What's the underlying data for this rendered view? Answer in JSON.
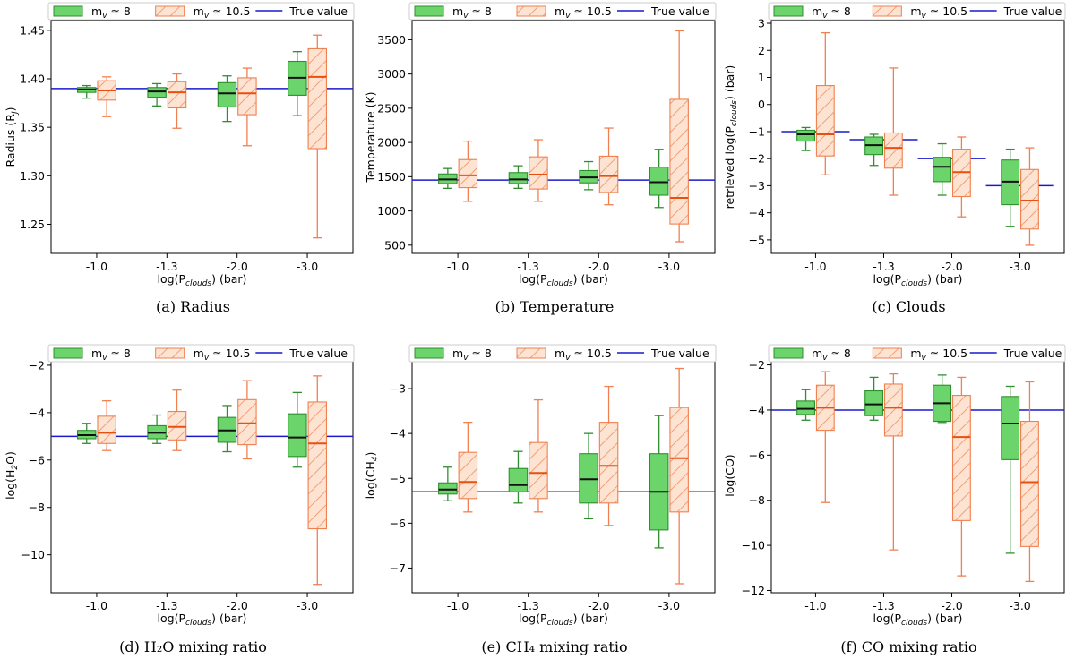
{
  "legend": {
    "series_a": "m",
    "series_a_sub": "v",
    "series_a_rest": " ≃ 8",
    "series_b": "m",
    "series_b_sub": "v",
    "series_b_rest": " ≃ 10.5",
    "true_value": "True value"
  },
  "colors": {
    "green_fill": "#6bd46b",
    "green_line": "#2f8f2f",
    "green_median": "#111111",
    "orange_fill": "#fde3d2",
    "orange_line": "#f08050",
    "orange_median": "#e8500f",
    "true_line": "#1a1acc"
  },
  "chart_data": [
    {
      "type": "box",
      "caption": "(a) Radius",
      "xlabel": "log(P_clouds) (bar)",
      "xlabel_main": "log(P",
      "xlabel_sub": "clouds",
      "xlabel_rest": ") (bar)",
      "ylabel": "Radius (R_J)",
      "ylabel_main": "Radius (R",
      "ylabel_sub": "J",
      "ylabel_rest": ")",
      "categories": [
        "-1.0",
        "-1.3",
        "-2.0",
        "-3.0"
      ],
      "ylim": [
        1.22,
        1.46
      ],
      "yticks": [
        "1.25",
        "1.30",
        "1.35",
        "1.40",
        "1.45"
      ],
      "ytick_values": [
        1.25,
        1.3,
        1.35,
        1.4,
        1.45
      ],
      "true_value": 1.39,
      "series": [
        {
          "name": "m_v ≃ 8",
          "boxes": [
            {
              "whislo": 1.38,
              "q1": 1.386,
              "med": 1.389,
              "q3": 1.391,
              "whishi": 1.393
            },
            {
              "whislo": 1.372,
              "q1": 1.381,
              "med": 1.387,
              "q3": 1.391,
              "whishi": 1.395
            },
            {
              "whislo": 1.356,
              "q1": 1.371,
              "med": 1.385,
              "q3": 1.396,
              "whishi": 1.403
            },
            {
              "whislo": 1.362,
              "q1": 1.383,
              "med": 1.401,
              "q3": 1.418,
              "whishi": 1.428
            }
          ]
        },
        {
          "name": "m_v ≃ 10.5",
          "boxes": [
            {
              "whislo": 1.361,
              "q1": 1.378,
              "med": 1.388,
              "q3": 1.398,
              "whishi": 1.402
            },
            {
              "whislo": 1.349,
              "q1": 1.37,
              "med": 1.386,
              "q3": 1.397,
              "whishi": 1.405
            },
            {
              "whislo": 1.331,
              "q1": 1.363,
              "med": 1.385,
              "q3": 1.401,
              "whishi": 1.411
            },
            {
              "whislo": 1.236,
              "q1": 1.328,
              "med": 1.402,
              "q3": 1.431,
              "whishi": 1.445
            }
          ]
        }
      ]
    },
    {
      "type": "box",
      "caption": "(b) Temperature",
      "xlabel": "log(P_clouds) (bar)",
      "xlabel_main": "log(P",
      "xlabel_sub": "clouds",
      "xlabel_rest": ") (bar)",
      "ylabel": "Temperature (K)",
      "ylabel_main": "Temperature (K)",
      "ylabel_sub": "",
      "ylabel_rest": "",
      "categories": [
        "-1.0",
        "-1.3",
        "-2.0",
        "-3.0"
      ],
      "ylim": [
        380,
        3780
      ],
      "yticks": [
        "500",
        "1000",
        "1500",
        "2000",
        "2500",
        "3000",
        "3500"
      ],
      "ytick_values": [
        500,
        1000,
        1500,
        2000,
        2500,
        3000,
        3500
      ],
      "true_value": 1450,
      "series": [
        {
          "name": "m_v ≃ 8",
          "boxes": [
            {
              "whislo": 1330,
              "q1": 1400,
              "med": 1460,
              "q3": 1540,
              "whishi": 1620
            },
            {
              "whislo": 1330,
              "q1": 1400,
              "med": 1460,
              "q3": 1560,
              "whishi": 1660
            },
            {
              "whislo": 1310,
              "q1": 1410,
              "med": 1490,
              "q3": 1590,
              "whishi": 1720
            },
            {
              "whislo": 1050,
              "q1": 1230,
              "med": 1420,
              "q3": 1640,
              "whishi": 1900
            }
          ]
        },
        {
          "name": "m_v ≃ 10.5",
          "boxes": [
            {
              "whislo": 1140,
              "q1": 1340,
              "med": 1520,
              "q3": 1750,
              "whishi": 2020
            },
            {
              "whislo": 1140,
              "q1": 1320,
              "med": 1530,
              "q3": 1790,
              "whishi": 2040
            },
            {
              "whislo": 1090,
              "q1": 1270,
              "med": 1510,
              "q3": 1800,
              "whishi": 2210
            },
            {
              "whislo": 550,
              "q1": 810,
              "med": 1190,
              "q3": 2630,
              "whishi": 3630
            }
          ]
        }
      ]
    },
    {
      "type": "box",
      "caption": "(c) Clouds",
      "xlabel": "log(P_clouds) (bar)",
      "xlabel_main": "log(P",
      "xlabel_sub": "clouds",
      "xlabel_rest": ") (bar)",
      "ylabel": "retrieved log(P_clouds) (bar)",
      "ylabel_main": "retrieved log(P",
      "ylabel_sub": "clouds",
      "ylabel_rest": ") (bar)",
      "categories": [
        "-1.0",
        "-1.3",
        "-2.0",
        "-3.0"
      ],
      "ylim": [
        -5.5,
        3.1
      ],
      "yticks": [
        "−5",
        "−4",
        "−3",
        "−2",
        "−1",
        "0",
        "1",
        "2",
        "3"
      ],
      "ytick_values": [
        -5,
        -4,
        -3,
        -2,
        -1,
        0,
        1,
        2,
        3
      ],
      "true_value_segments": [
        -1.0,
        -1.3,
        -2.0,
        -3.0
      ],
      "series": [
        {
          "name": "m_v ≃ 8",
          "boxes": [
            {
              "whislo": -1.7,
              "q1": -1.35,
              "med": -1.1,
              "q3": -0.95,
              "whishi": -0.85
            },
            {
              "whislo": -2.25,
              "q1": -1.85,
              "med": -1.5,
              "q3": -1.2,
              "whishi": -1.1
            },
            {
              "whislo": -3.35,
              "q1": -2.85,
              "med": -2.3,
              "q3": -1.95,
              "whishi": -1.45
            },
            {
              "whislo": -4.5,
              "q1": -3.7,
              "med": -2.85,
              "q3": -2.05,
              "whishi": -1.65
            }
          ]
        },
        {
          "name": "m_v ≃ 10.5",
          "boxes": [
            {
              "whislo": -2.6,
              "q1": -1.9,
              "med": -1.1,
              "q3": 0.7,
              "whishi": 2.65
            },
            {
              "whislo": -3.35,
              "q1": -2.35,
              "med": -1.6,
              "q3": -1.05,
              "whishi": 1.35
            },
            {
              "whislo": -4.15,
              "q1": -3.4,
              "med": -2.5,
              "q3": -1.65,
              "whishi": -1.2
            },
            {
              "whislo": -5.2,
              "q1": -4.6,
              "med": -3.55,
              "q3": -2.4,
              "whishi": -1.6
            }
          ]
        }
      ]
    },
    {
      "type": "box",
      "caption": "(d) H₂O mixing ratio",
      "xlabel": "log(P_clouds) (bar)",
      "xlabel_main": "log(P",
      "xlabel_sub": "clouds",
      "xlabel_rest": ") (bar)",
      "ylabel": "log(H2O)",
      "ylabel_main": "log(H",
      "ylabel_sub": "2",
      "ylabel_rest": "O)",
      "categories": [
        "-1.0",
        "-1.3",
        "-2.0",
        "-3.0"
      ],
      "ylim": [
        -11.6,
        -1.7
      ],
      "yticks": [
        "−10",
        "−8",
        "−6",
        "−4",
        "−2"
      ],
      "ytick_values": [
        -10,
        -8,
        -6,
        -4,
        -2
      ],
      "true_value": -5.0,
      "series": [
        {
          "name": "m_v ≃ 8",
          "boxes": [
            {
              "whislo": -5.3,
              "q1": -5.1,
              "med": -4.95,
              "q3": -4.75,
              "whishi": -4.45
            },
            {
              "whislo": -5.3,
              "q1": -5.1,
              "med": -4.85,
              "q3": -4.55,
              "whishi": -4.1
            },
            {
              "whislo": -5.65,
              "q1": -5.25,
              "med": -4.75,
              "q3": -4.2,
              "whishi": -3.7
            },
            {
              "whislo": -6.3,
              "q1": -5.85,
              "med": -5.05,
              "q3": -4.05,
              "whishi": -3.15
            }
          ]
        },
        {
          "name": "m_v ≃ 10.5",
          "boxes": [
            {
              "whislo": -5.6,
              "q1": -5.3,
              "med": -4.85,
              "q3": -4.15,
              "whishi": -3.5
            },
            {
              "whislo": -5.6,
              "q1": -5.15,
              "med": -4.6,
              "q3": -3.95,
              "whishi": -3.05
            },
            {
              "whislo": -5.95,
              "q1": -5.35,
              "med": -4.45,
              "q3": -3.45,
              "whishi": -2.65
            },
            {
              "whislo": -11.25,
              "q1": -8.9,
              "med": -5.3,
              "q3": -3.55,
              "whishi": -2.45
            }
          ]
        }
      ]
    },
    {
      "type": "box",
      "caption": "(e) CH₄ mixing ratio",
      "xlabel": "log(P_clouds) (bar)",
      "xlabel_main": "log(P",
      "xlabel_sub": "clouds",
      "xlabel_rest": ") (bar)",
      "ylabel": "log(CH4)",
      "ylabel_main": "log(CH",
      "ylabel_sub": "4",
      "ylabel_rest": ")",
      "categories": [
        "-1.0",
        "-1.3",
        "-2.0",
        "-3.0"
      ],
      "ylim": [
        -7.55,
        -2.32
      ],
      "yticks": [
        "−7",
        "−6",
        "−5",
        "−4",
        "−3"
      ],
      "ytick_values": [
        -7,
        -6,
        -5,
        -4,
        -3
      ],
      "true_value": -5.3,
      "series": [
        {
          "name": "m_v ≃ 8",
          "boxes": [
            {
              "whislo": -5.5,
              "q1": -5.35,
              "med": -5.25,
              "q3": -5.1,
              "whishi": -4.75
            },
            {
              "whislo": -5.55,
              "q1": -5.3,
              "med": -5.15,
              "q3": -4.78,
              "whishi": -4.4
            },
            {
              "whislo": -5.9,
              "q1": -5.55,
              "med": -5.02,
              "q3": -4.45,
              "whishi": -4.0
            },
            {
              "whislo": -6.55,
              "q1": -6.15,
              "med": -5.3,
              "q3": -4.45,
              "whishi": -3.6
            }
          ]
        },
        {
          "name": "m_v ≃ 10.5",
          "boxes": [
            {
              "whislo": -5.75,
              "q1": -5.45,
              "med": -5.08,
              "q3": -4.42,
              "whishi": -3.75
            },
            {
              "whislo": -5.75,
              "q1": -5.45,
              "med": -4.88,
              "q3": -4.2,
              "whishi": -3.25
            },
            {
              "whislo": -6.05,
              "q1": -5.55,
              "med": -4.72,
              "q3": -3.75,
              "whishi": -2.95
            },
            {
              "whislo": -7.35,
              "q1": -5.75,
              "med": -4.55,
              "q3": -3.42,
              "whishi": -2.55
            }
          ]
        }
      ]
    },
    {
      "type": "box",
      "caption": "(f) CO mixing ratio",
      "xlabel": "log(P_clouds) (bar)",
      "xlabel_main": "log(P",
      "xlabel_sub": "clouds",
      "xlabel_rest": ") (bar)",
      "ylabel": "log(CO)",
      "ylabel_main": "log(CO)",
      "ylabel_sub": "",
      "ylabel_rest": "",
      "categories": [
        "-1.0",
        "-1.3",
        "-2.0",
        "-3.0"
      ],
      "ylim": [
        -12.1,
        -1.7
      ],
      "yticks": [
        "−12",
        "−10",
        "−8",
        "−6",
        "−4",
        "−2"
      ],
      "ytick_values": [
        -12,
        -10,
        -8,
        -6,
        -4,
        -2
      ],
      "true_value": -4.0,
      "series": [
        {
          "name": "m_v ≃ 8",
          "boxes": [
            {
              "whislo": -4.45,
              "q1": -4.2,
              "med": -3.95,
              "q3": -3.6,
              "whishi": -3.1
            },
            {
              "whislo": -4.45,
              "q1": -4.25,
              "med": -3.75,
              "q3": -3.15,
              "whishi": -2.55
            },
            {
              "whislo": -4.55,
              "q1": -4.5,
              "med": -3.7,
              "q3": -2.9,
              "whishi": -2.45
            },
            {
              "whislo": -10.35,
              "q1": -6.2,
              "med": -4.6,
              "q3": -3.4,
              "whishi": -2.95
            }
          ]
        },
        {
          "name": "m_v ≃ 10.5",
          "boxes": [
            {
              "whislo": -8.1,
              "q1": -4.9,
              "med": -3.9,
              "q3": -2.9,
              "whishi": -2.3
            },
            {
              "whislo": -10.2,
              "q1": -5.15,
              "med": -3.9,
              "q3": -2.85,
              "whishi": -2.4
            },
            {
              "whislo": -11.35,
              "q1": -8.9,
              "med": -5.2,
              "q3": -3.35,
              "whishi": -2.55
            },
            {
              "whislo": -11.6,
              "q1": -10.05,
              "med": -7.2,
              "q3": -4.5,
              "whishi": -2.75
            }
          ]
        }
      ]
    }
  ]
}
